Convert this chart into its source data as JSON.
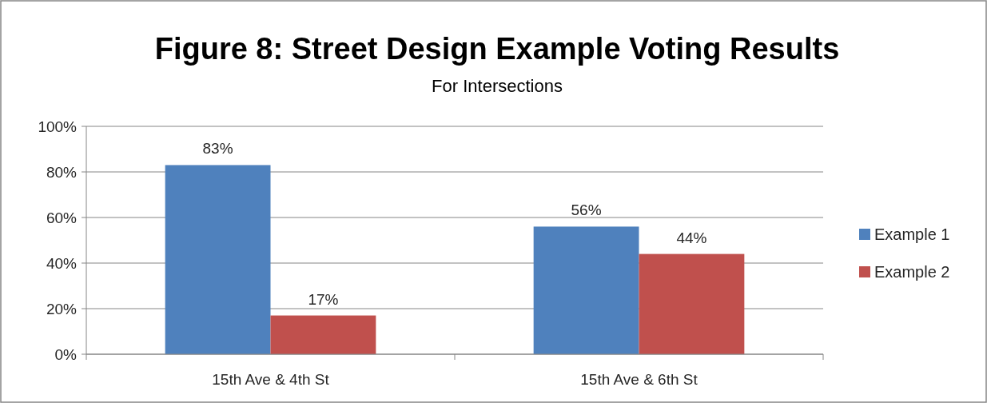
{
  "chart_data": {
    "type": "bar",
    "title": "Figure 8: Street Design Example Voting Results",
    "subtitle": "For Intersections",
    "categories": [
      "15th Ave & 4th St",
      "15th Ave & 6th St"
    ],
    "series": [
      {
        "name": "Example 1",
        "color": "#4f81bd",
        "values": [
          83,
          56
        ],
        "value_labels": [
          "83%",
          "56%"
        ]
      },
      {
        "name": "Example 2",
        "color": "#c0504d",
        "values": [
          17,
          44
        ],
        "value_labels": [
          "17%",
          "44%"
        ]
      }
    ],
    "ylim": [
      0,
      100
    ],
    "yticks": [
      {
        "value": 0,
        "label": "0%"
      },
      {
        "value": 20,
        "label": "20%"
      },
      {
        "value": 40,
        "label": "40%"
      },
      {
        "value": 60,
        "label": "60%"
      },
      {
        "value": 80,
        "label": "80%"
      },
      {
        "value": 100,
        "label": "100%"
      }
    ],
    "grid": "y",
    "legend": "right"
  }
}
